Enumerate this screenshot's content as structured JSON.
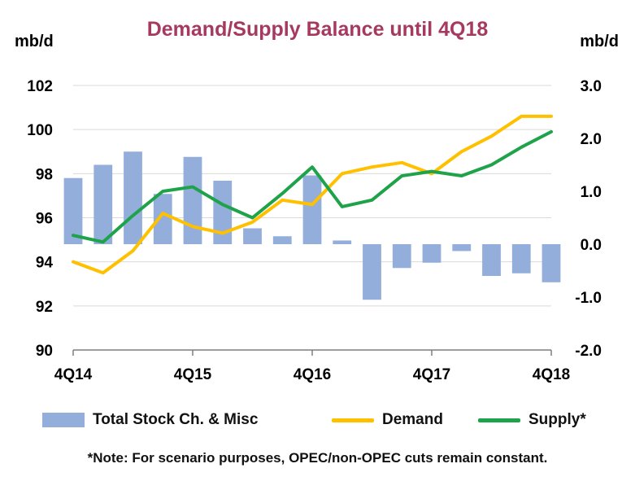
{
  "chart_data": {
    "type": "bar+line",
    "title": "Demand/Supply Balance until 4Q18",
    "y_left_label": "mb/d",
    "y_right_label": "mb/d",
    "y_left_lim": [
      90,
      102
    ],
    "y_right_lim": [
      -2.0,
      3.0
    ],
    "y_left_ticks": [
      "90",
      "92",
      "94",
      "96",
      "98",
      "100",
      "102"
    ],
    "y_right_ticks": [
      "-2.0",
      "-1.0",
      "0.0",
      "1.0",
      "2.0",
      "3.0"
    ],
    "x_tick_labels": [
      "4Q14",
      "4Q15",
      "4Q16",
      "4Q17",
      "4Q18"
    ],
    "grid": true,
    "legend_position": "bottom",
    "categories": [
      "4Q14",
      "1Q15",
      "2Q15",
      "3Q15",
      "4Q15",
      "1Q16",
      "2Q16",
      "3Q16",
      "4Q16",
      "1Q17",
      "2Q17",
      "3Q17",
      "4Q17",
      "1Q18",
      "2Q18",
      "3Q18",
      "4Q18"
    ],
    "series": [
      {
        "name": "Total Stock Ch. & Misc",
        "type": "bar",
        "axis": "right",
        "color": "#93aedb",
        "values": [
          1.25,
          1.5,
          1.75,
          0.95,
          1.65,
          1.2,
          0.3,
          0.15,
          1.3,
          0.07,
          -1.05,
          -0.45,
          -0.35,
          -0.13,
          -0.6,
          -0.55,
          -0.72
        ]
      },
      {
        "name": "Demand",
        "type": "line",
        "axis": "left",
        "color": "#ffc000",
        "values": [
          94.0,
          93.5,
          94.5,
          96.2,
          95.6,
          95.3,
          95.8,
          96.8,
          96.6,
          98.0,
          98.3,
          98.5,
          98.0,
          99.0,
          99.7,
          100.6,
          100.6
        ]
      },
      {
        "name": "Supply*",
        "type": "line",
        "axis": "left",
        "color": "#1fa34a",
        "values": [
          95.2,
          94.9,
          96.1,
          97.2,
          97.4,
          96.6,
          96.0,
          97.1,
          98.3,
          96.5,
          96.8,
          97.9,
          98.1,
          97.9,
          98.4,
          99.2,
          99.9
        ]
      }
    ]
  },
  "note": "*Note: For scenario purposes, OPEC/non-OPEC cuts remain constant."
}
